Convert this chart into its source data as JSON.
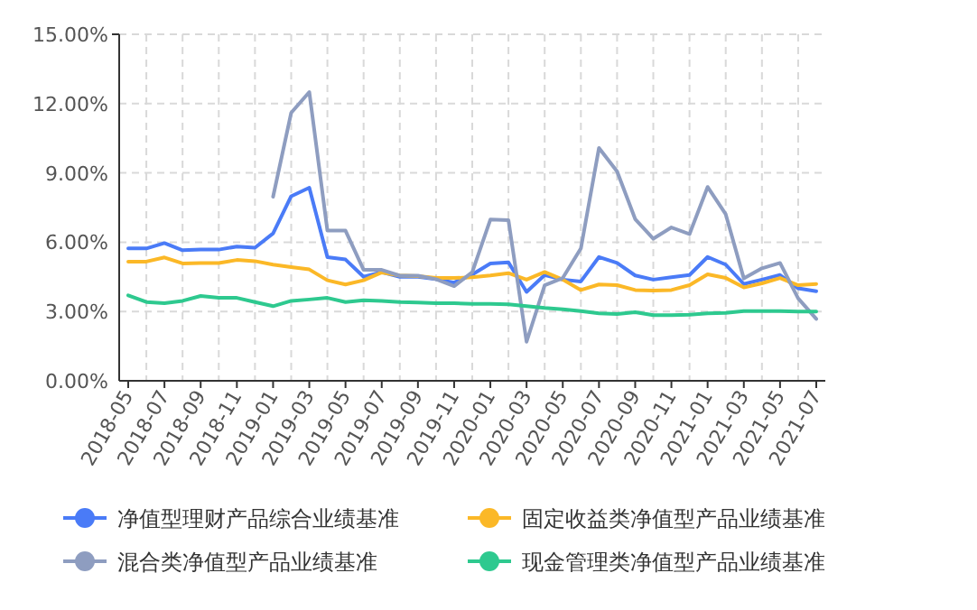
{
  "chart_data": {
    "type": "line",
    "categories": [
      "2018-05",
      null,
      "2018-07",
      null,
      "2018-09",
      null,
      "2018-11",
      null,
      "2019-01",
      null,
      "2019-03",
      null,
      "2019-05",
      null,
      "2019-07",
      null,
      "2019-09",
      null,
      "2019-11",
      null,
      "2020-01",
      null,
      "2020-03",
      null,
      "2020-05",
      null,
      "2020-07",
      null,
      "2020-09",
      null,
      "2020-11",
      null,
      "2021-01",
      null,
      "2021-03",
      null,
      "2021-05",
      null,
      "2021-07"
    ],
    "series": [
      {
        "name": "净值型理财产品综合业绩基准",
        "color": "#4a7bf7",
        "values": [
          5.73,
          5.73,
          5.96,
          5.65,
          5.68,
          5.68,
          5.81,
          5.76,
          6.38,
          7.99,
          8.36,
          5.35,
          5.25,
          4.5,
          4.7,
          4.5,
          4.5,
          4.4,
          4.25,
          4.6,
          5.08,
          5.13,
          3.85,
          4.58,
          4.38,
          4.3,
          5.36,
          5.1,
          4.56,
          4.38,
          4.48,
          4.58,
          5.36,
          5.03,
          4.19,
          4.38,
          4.58,
          4.0,
          3.88
        ]
      },
      {
        "name": "固定收益类净值型产品业绩基准",
        "color": "#fbb827",
        "values": [
          5.16,
          5.16,
          5.34,
          5.08,
          5.1,
          5.1,
          5.23,
          5.18,
          5.03,
          4.92,
          4.82,
          4.35,
          4.17,
          4.35,
          4.69,
          4.56,
          4.53,
          4.45,
          4.45,
          4.48,
          4.56,
          4.66,
          4.38,
          4.71,
          4.38,
          3.93,
          4.17,
          4.14,
          3.93,
          3.91,
          3.93,
          4.14,
          4.61,
          4.45,
          4.04,
          4.22,
          4.45,
          4.14,
          4.19
        ]
      },
      {
        "name": "混合类净值型产品业绩基准",
        "color": "#8e9dc0",
        "values": [
          null,
          null,
          null,
          null,
          null,
          null,
          null,
          null,
          7.97,
          11.6,
          12.5,
          6.5,
          6.5,
          4.8,
          4.8,
          4.55,
          4.55,
          4.4,
          4.1,
          4.7,
          6.98,
          6.95,
          1.69,
          4.14,
          4.45,
          5.73,
          10.08,
          9.06,
          7.0,
          6.15,
          6.64,
          6.35,
          8.39,
          7.21,
          4.43,
          4.87,
          5.1,
          3.57,
          2.68
        ]
      },
      {
        "name": "现金管理类净值型产品业绩基准",
        "color": "#2ec98f",
        "values": [
          3.7,
          3.41,
          3.36,
          3.46,
          3.67,
          3.59,
          3.59,
          3.41,
          3.23,
          3.46,
          3.52,
          3.59,
          3.41,
          3.49,
          3.46,
          3.41,
          3.39,
          3.36,
          3.36,
          3.33,
          3.33,
          3.31,
          3.23,
          3.15,
          3.1,
          3.02,
          2.92,
          2.89,
          2.97,
          2.84,
          2.84,
          2.86,
          2.92,
          2.94,
          3.02,
          3.02,
          3.02,
          3.0,
          3.0
        ]
      }
    ],
    "ylim": [
      0,
      15
    ],
    "yticks": [
      {
        "value": 0,
        "label": "0.00%"
      },
      {
        "value": 3,
        "label": "3.00%"
      },
      {
        "value": 6,
        "label": "6.00%"
      },
      {
        "value": 9,
        "label": "9.00%"
      },
      {
        "value": 12,
        "label": "12.00%"
      },
      {
        "value": 15,
        "label": "15.00%"
      }
    ],
    "grid": true,
    "legend": "bottom",
    "line_style": "solid"
  }
}
